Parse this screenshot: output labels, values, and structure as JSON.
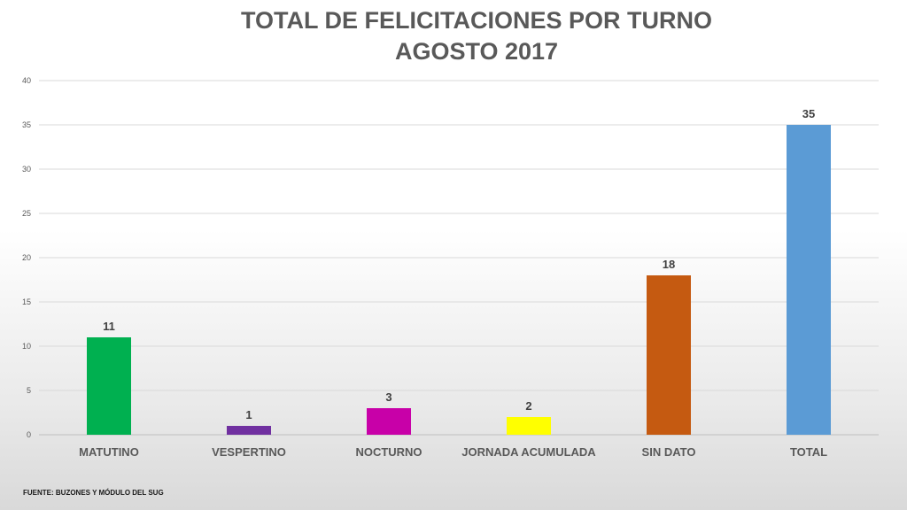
{
  "chart_data": {
    "type": "bar",
    "title_line1": "TOTAL DE FELICITACIONES POR TURNO",
    "title_line2": "AGOSTO 2017",
    "categories": [
      "MATUTINO",
      "VESPERTINO",
      "NOCTURNO",
      "JORNADA ACUMULADA",
      "SIN DATO",
      "TOTAL"
    ],
    "values": [
      11,
      1,
      3,
      2,
      18,
      35
    ],
    "colors": [
      "#00b050",
      "#7030a0",
      "#c800a8",
      "#ffff00",
      "#c55a11",
      "#5b9bd5"
    ],
    "ylim": [
      0,
      40
    ],
    "yticks": [
      0,
      5,
      10,
      15,
      20,
      25,
      30,
      35,
      40
    ],
    "grid": true,
    "xlabel": "",
    "ylabel": ""
  },
  "source": "FUENTE: BUZONES Y MÓDULO DEL SUG"
}
